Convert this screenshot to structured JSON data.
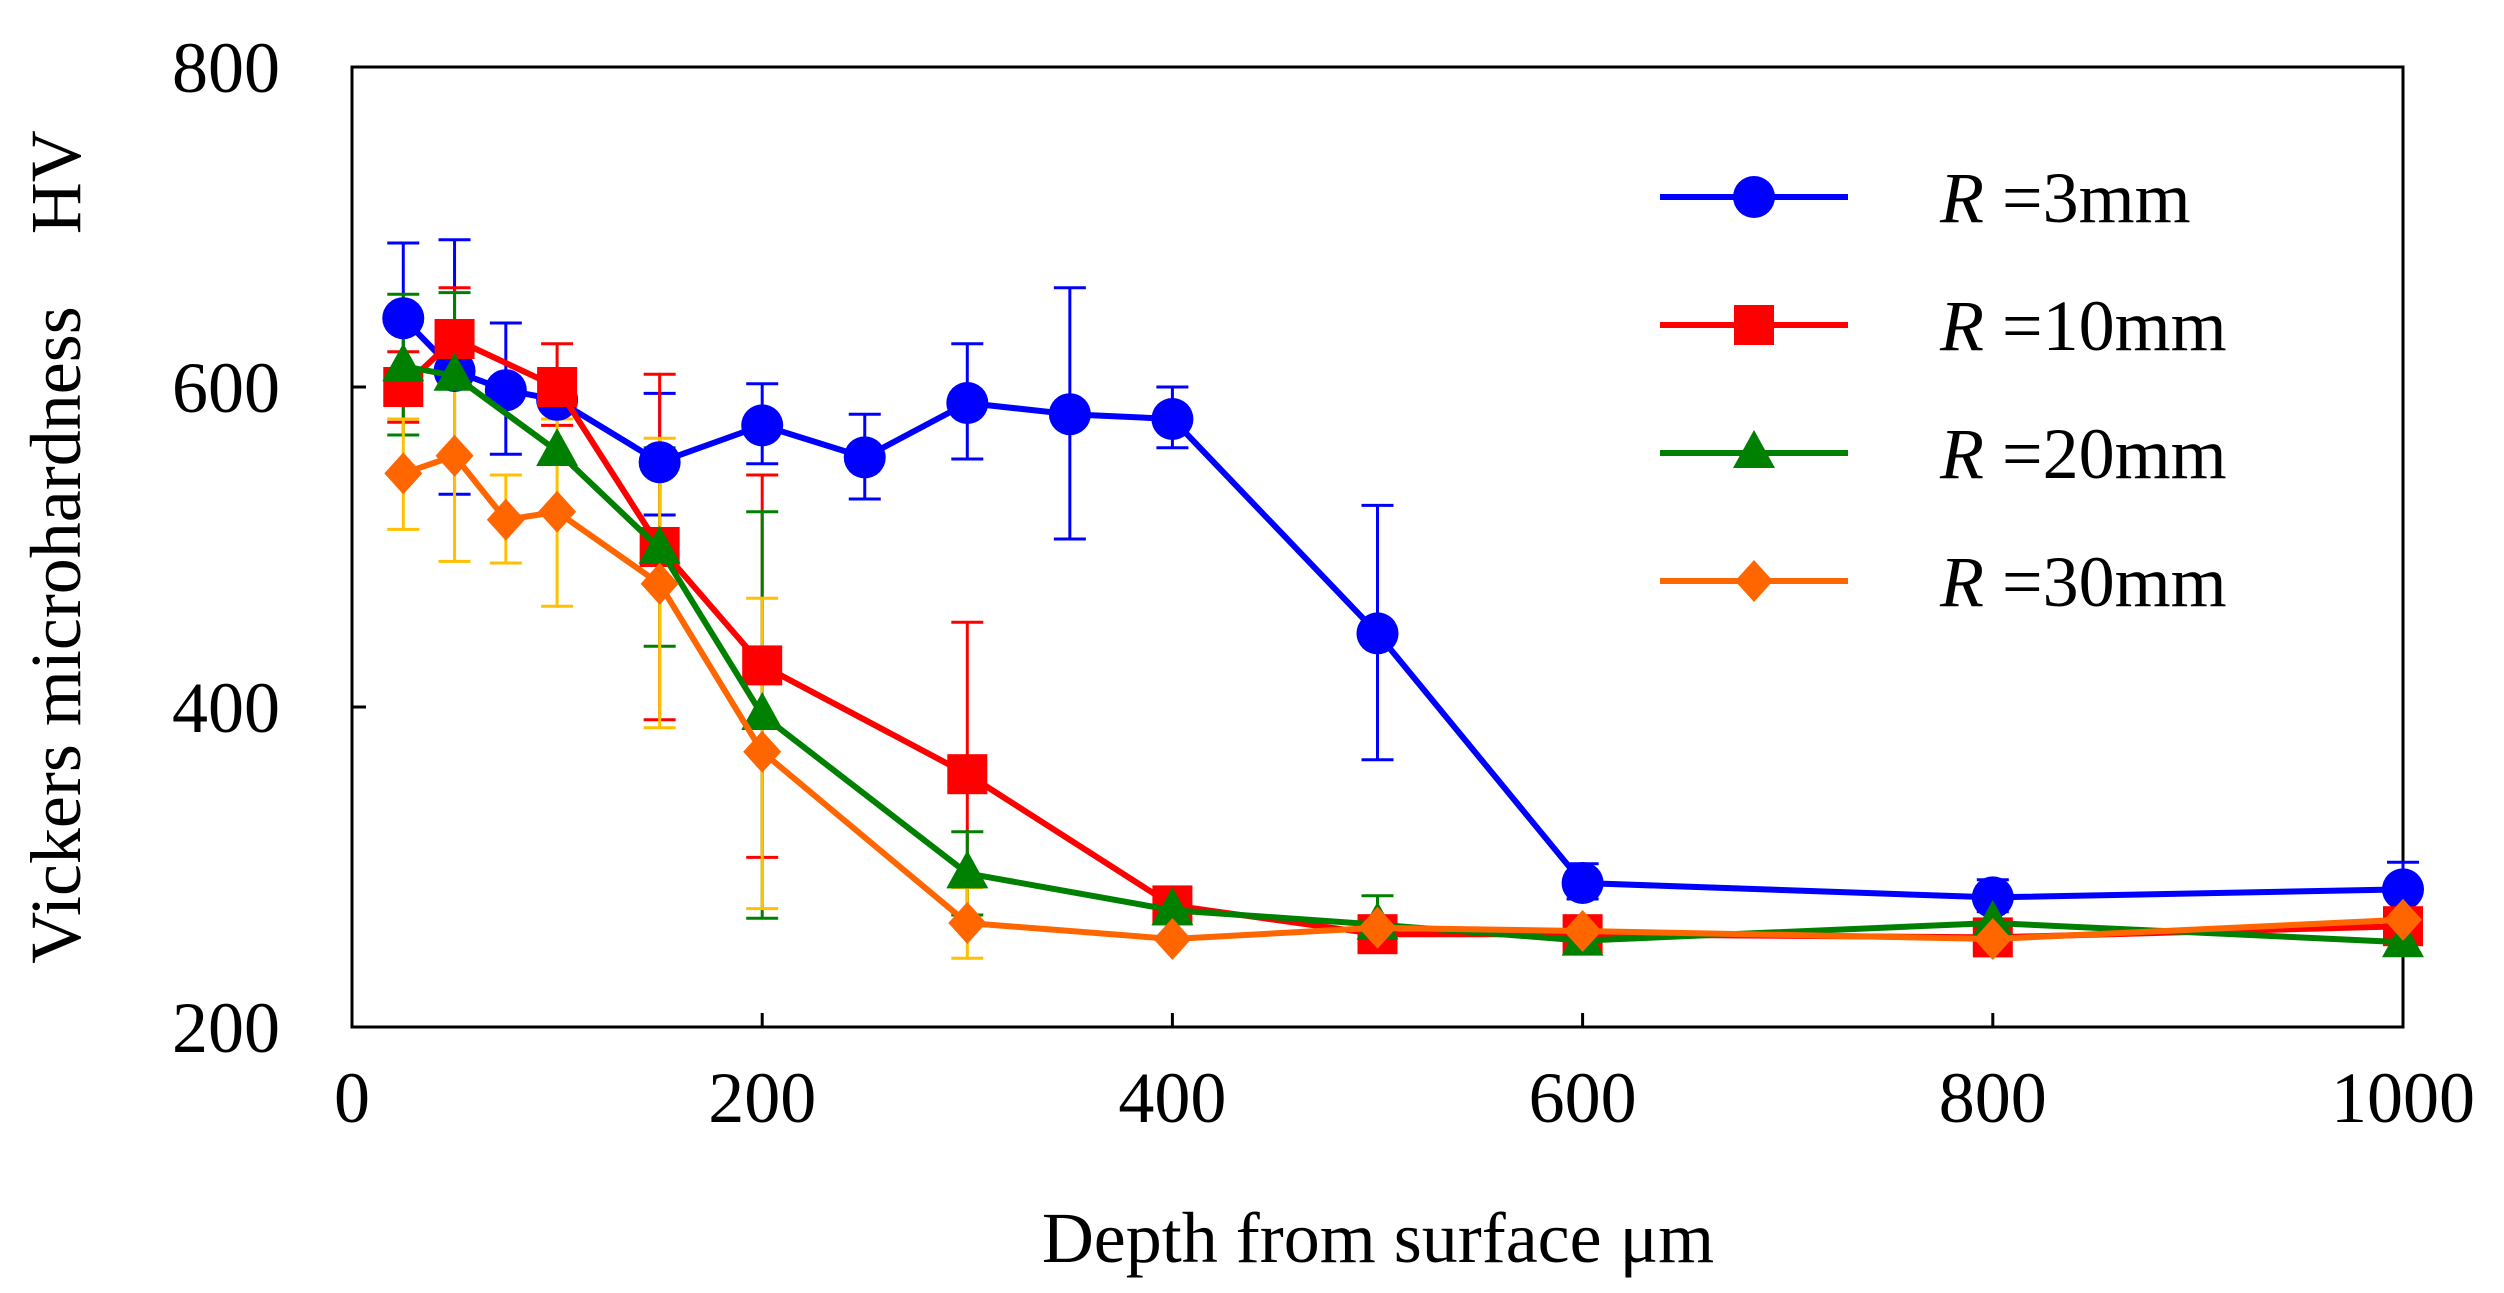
{
  "chart_data": {
    "type": "line",
    "title": "",
    "xlabel": "Depth from surface μm",
    "ylabel": "Vickers microhardness　HV",
    "xlim": [
      0,
      1000
    ],
    "ylim": [
      200,
      800
    ],
    "xticks": [
      0,
      200,
      400,
      600,
      800,
      1000
    ],
    "yticks": [
      200,
      400,
      600,
      800
    ],
    "xtick_labels": [
      "0",
      "200",
      "400",
      "600",
      "800",
      "1000"
    ],
    "ytick_labels": [
      "200",
      "400",
      "600",
      "800"
    ],
    "grid": false,
    "legend_position": "top-right",
    "series": [
      {
        "name": "R =3mm",
        "label_italic": "R",
        "label_rest": " =3mm",
        "color": "#0000FF",
        "errorbar_color": "#0000FF",
        "marker": "circle",
        "points": [
          {
            "x": 25,
            "y": 643,
            "lo": 598,
            "hi": 690
          },
          {
            "x": 50,
            "y": 610,
            "lo": 533,
            "hi": 692
          },
          {
            "x": 75,
            "y": 598,
            "lo": 558,
            "hi": 640
          },
          {
            "x": 100,
            "y": 592
          },
          {
            "x": 150,
            "y": 553,
            "lo": 520,
            "hi": 596
          },
          {
            "x": 200,
            "y": 576,
            "lo": 552,
            "hi": 602
          },
          {
            "x": 250,
            "y": 556,
            "lo": 530,
            "hi": 583
          },
          {
            "x": 300,
            "y": 590,
            "lo": 555,
            "hi": 627
          },
          {
            "x": 350,
            "y": 583,
            "lo": 505,
            "hi": 662
          },
          {
            "x": 400,
            "y": 580,
            "lo": 562,
            "hi": 600
          },
          {
            "x": 500,
            "y": 446,
            "lo": 367,
            "hi": 526
          },
          {
            "x": 600,
            "y": 290,
            "lo": 280,
            "hi": 302
          },
          {
            "x": 800,
            "y": 281,
            "lo": 272,
            "hi": 292
          },
          {
            "x": 1000,
            "y": 286,
            "lo": 274,
            "hi": 303
          }
        ]
      },
      {
        "name": "R =10mm",
        "label_italic": "R",
        "label_rest": " =10mm",
        "color": "#FF0000",
        "errorbar_color": "#FF0000",
        "marker": "square",
        "points": [
          {
            "x": 25,
            "y": 600,
            "lo": 578,
            "hi": 622
          },
          {
            "x": 50,
            "y": 630,
            "lo": 600,
            "hi": 662
          },
          {
            "x": 100,
            "y": 600,
            "lo": 576,
            "hi": 627
          },
          {
            "x": 150,
            "y": 500,
            "lo": 392,
            "hi": 608
          },
          {
            "x": 200,
            "y": 426,
            "lo": 306,
            "hi": 545
          },
          {
            "x": 300,
            "y": 358,
            "lo": 265,
            "hi": 453
          },
          {
            "x": 400,
            "y": 276
          },
          {
            "x": 500,
            "y": 258
          },
          {
            "x": 600,
            "y": 258
          },
          {
            "x": 800,
            "y": 256
          },
          {
            "x": 1000,
            "y": 263
          }
        ]
      },
      {
        "name": "R =20mm",
        "label_italic": "R",
        "label_rest": " =20mm",
        "color": "#008000",
        "errorbar_color": "#008000",
        "marker": "triangle",
        "points": [
          {
            "x": 25,
            "y": 613,
            "lo": 570,
            "hi": 658
          },
          {
            "x": 50,
            "y": 607,
            "lo": 557,
            "hi": 659
          },
          {
            "x": 100,
            "y": 560
          },
          {
            "x": 150,
            "y": 499,
            "lo": 438,
            "hi": 562
          },
          {
            "x": 200,
            "y": 395,
            "lo": 268,
            "hi": 522
          },
          {
            "x": 300,
            "y": 296,
            "lo": 270,
            "hi": 322
          },
          {
            "x": 400,
            "y": 273
          },
          {
            "x": 500,
            "y": 264,
            "lo": 247,
            "hi": 282
          },
          {
            "x": 600,
            "y": 254
          },
          {
            "x": 800,
            "y": 265
          },
          {
            "x": 1000,
            "y": 253
          }
        ]
      },
      {
        "name": "R =30mm",
        "label_italic": "R",
        "label_rest": " =30mm",
        "color": "#FF6600",
        "errorbar_color": "#FFC000",
        "marker": "diamond",
        "points": [
          {
            "x": 25,
            "y": 546,
            "lo": 511,
            "hi": 580
          },
          {
            "x": 50,
            "y": 557,
            "lo": 491,
            "hi": 625
          },
          {
            "x": 75,
            "y": 517,
            "lo": 490,
            "hi": 545
          },
          {
            "x": 100,
            "y": 522,
            "lo": 463,
            "hi": 580
          },
          {
            "x": 150,
            "y": 477,
            "lo": 387,
            "hi": 568
          },
          {
            "x": 200,
            "y": 372,
            "lo": 274,
            "hi": 468
          },
          {
            "x": 300,
            "y": 265,
            "lo": 243,
            "hi": 287
          },
          {
            "x": 400,
            "y": 255
          },
          {
            "x": 500,
            "y": 262
          },
          {
            "x": 600,
            "y": 260
          },
          {
            "x": 800,
            "y": 255
          },
          {
            "x": 1000,
            "y": 267
          }
        ]
      }
    ]
  }
}
